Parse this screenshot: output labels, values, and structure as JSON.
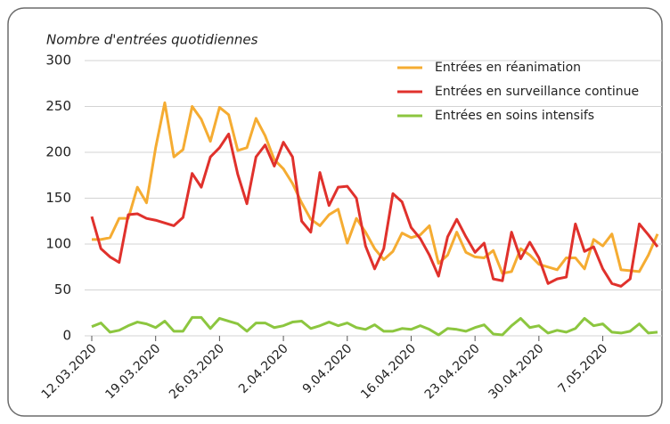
{
  "chart_data": {
    "type": "line",
    "y_label": "Nombre d'entrées quotidiennes",
    "categories": [
      "12.03.2020",
      null,
      null,
      null,
      null,
      null,
      null,
      "19.03.2020",
      null,
      null,
      null,
      null,
      null,
      null,
      "26.03.2020",
      null,
      null,
      null,
      null,
      null,
      null,
      "2.04.2020",
      null,
      null,
      null,
      null,
      null,
      null,
      "9.04.2020",
      null,
      null,
      null,
      null,
      null,
      null,
      "16.04.2020",
      null,
      null,
      null,
      null,
      null,
      null,
      "23.04.2020",
      null,
      null,
      null,
      null,
      null,
      null,
      "30.04.2020",
      null,
      null,
      null,
      null,
      null,
      null,
      "7.05.2020",
      null,
      null,
      null,
      null,
      null,
      null
    ],
    "series": [
      {
        "name": "Entrées en réanimation",
        "color": "#f5ac32",
        "values": [
          105,
          105,
          107,
          128,
          128,
          162,
          145,
          205,
          254,
          195,
          203,
          250,
          236,
          212,
          249,
          241,
          202,
          205,
          237,
          218,
          192,
          182,
          166,
          145,
          127,
          120,
          132,
          138,
          101,
          128,
          113,
          95,
          83,
          92,
          112,
          107,
          110,
          120,
          79,
          88,
          113,
          91,
          86,
          85,
          93,
          68,
          70,
          95,
          88,
          78,
          75,
          72,
          85,
          85,
          73,
          105,
          98,
          111,
          72,
          71,
          70,
          88,
          111
        ]
      },
      {
        "name": "Entrées en surveillance continue",
        "color": "#e0312c",
        "values": [
          130,
          95,
          86,
          80,
          132,
          133,
          128,
          126,
          123,
          120,
          129,
          177,
          162,
          195,
          205,
          220,
          176,
          144,
          195,
          208,
          185,
          211,
          195,
          125,
          113,
          178,
          142,
          162,
          163,
          150,
          98,
          73,
          95,
          155,
          146,
          118,
          106,
          88,
          65,
          108,
          127,
          108,
          91,
          101,
          62,
          60,
          113,
          84,
          102,
          85,
          57,
          62,
          64,
          122,
          92,
          97,
          73,
          57,
          54,
          62,
          122,
          110,
          97
        ]
      },
      {
        "name": "Entrées en soins intensifs",
        "color": "#8cc63f",
        "values": [
          10,
          14,
          4,
          6,
          11,
          15,
          13,
          9,
          16,
          5,
          5,
          20,
          20,
          8,
          19,
          16,
          13,
          5,
          14,
          14,
          9,
          11,
          15,
          16,
          8,
          11,
          15,
          11,
          14,
          9,
          7,
          12,
          5,
          5,
          8,
          7,
          11,
          7,
          1,
          8,
          7,
          5,
          9,
          12,
          2,
          1,
          11,
          19,
          9,
          11,
          3,
          6,
          4,
          8,
          19,
          11,
          13,
          4,
          3,
          5,
          13,
          3,
          4
        ]
      }
    ],
    "ylim": [
      0,
      300
    ],
    "yticks": [
      0,
      50,
      100,
      150,
      200,
      250,
      300
    ],
    "grid": true,
    "legend": "top-right"
  }
}
